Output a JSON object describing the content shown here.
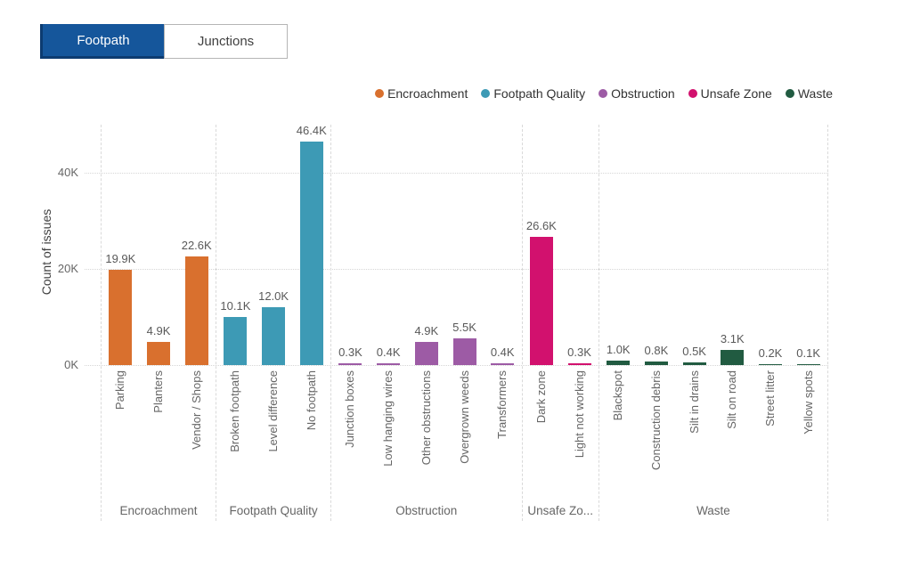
{
  "tabs": [
    {
      "label": "Footpath",
      "active": true
    },
    {
      "label": "Junctions",
      "active": false
    }
  ],
  "colors": {
    "tab_active_bg": "#15569B",
    "tab_active_border": "#0C3B70",
    "encroachment": "#D9702E",
    "footpath_quality": "#3D9AB5",
    "obstruction": "#9D5BA5",
    "unsafe_zone": "#D2116E",
    "waste": "#215B41"
  },
  "legend": [
    {
      "label": "Encroachment",
      "color": "#D9702E"
    },
    {
      "label": "Footpath Quality",
      "color": "#3D9AB5"
    },
    {
      "label": "Obstruction",
      "color": "#9D5BA5"
    },
    {
      "label": "Unsafe Zone",
      "color": "#D2116E"
    },
    {
      "label": "Waste",
      "color": "#215B41"
    }
  ],
  "chart_data": {
    "type": "bar",
    "title": "",
    "xlabel": "",
    "ylabel": "Count of issues",
    "ylim": [
      0,
      50000
    ],
    "y_ticks": [
      {
        "label": "0K",
        "value": 0
      },
      {
        "label": "20K",
        "value": 20000
      },
      {
        "label": "40K",
        "value": 40000
      }
    ],
    "grid": "dotted-horizontal",
    "legend_position": "top-right",
    "groups": [
      {
        "name": "Encroachment",
        "display_name": "Encroachment",
        "color": "#D9702E",
        "bars": [
          {
            "label": "Parking",
            "value": 19900,
            "display": "19.9K"
          },
          {
            "label": "Planters",
            "value": 4900,
            "display": "4.9K"
          },
          {
            "label": "Vendor / Shops",
            "value": 22600,
            "display": "22.6K"
          }
        ]
      },
      {
        "name": "Footpath Quality",
        "display_name": "Footpath Quality",
        "color": "#3D9AB5",
        "bars": [
          {
            "label": "Broken footpath",
            "value": 10100,
            "display": "10.1K"
          },
          {
            "label": "Level difference",
            "value": 12000,
            "display": "12.0K"
          },
          {
            "label": "No footpath",
            "value": 46400,
            "display": "46.4K"
          }
        ]
      },
      {
        "name": "Obstruction",
        "display_name": "Obstruction",
        "color": "#9D5BA5",
        "bars": [
          {
            "label": "Junction boxes",
            "value": 300,
            "display": "0.3K"
          },
          {
            "label": "Low hanging wires",
            "value": 400,
            "display": "0.4K"
          },
          {
            "label": "Other obstructions",
            "value": 4900,
            "display": "4.9K"
          },
          {
            "label": "Overgrown weeds",
            "value": 5500,
            "display": "5.5K"
          },
          {
            "label": "Transformers",
            "value": 400,
            "display": "0.4K"
          }
        ]
      },
      {
        "name": "Unsafe Zone",
        "display_name": "Unsafe Zo...",
        "color": "#D2116E",
        "bars": [
          {
            "label": "Dark zone",
            "value": 26600,
            "display": "26.6K"
          },
          {
            "label": "Light not working",
            "value": 300,
            "display": "0.3K"
          }
        ]
      },
      {
        "name": "Waste",
        "display_name": "Waste",
        "color": "#215B41",
        "bars": [
          {
            "label": "Blackspot",
            "value": 1000,
            "display": "1.0K"
          },
          {
            "label": "Construction debris",
            "value": 800,
            "display": "0.8K"
          },
          {
            "label": "Silt in drains",
            "value": 500,
            "display": "0.5K"
          },
          {
            "label": "Silt on road",
            "value": 3100,
            "display": "3.1K"
          },
          {
            "label": "Street litter",
            "value": 200,
            "display": "0.2K"
          },
          {
            "label": "Yellow spots",
            "value": 100,
            "display": "0.1K"
          }
        ]
      }
    ]
  }
}
